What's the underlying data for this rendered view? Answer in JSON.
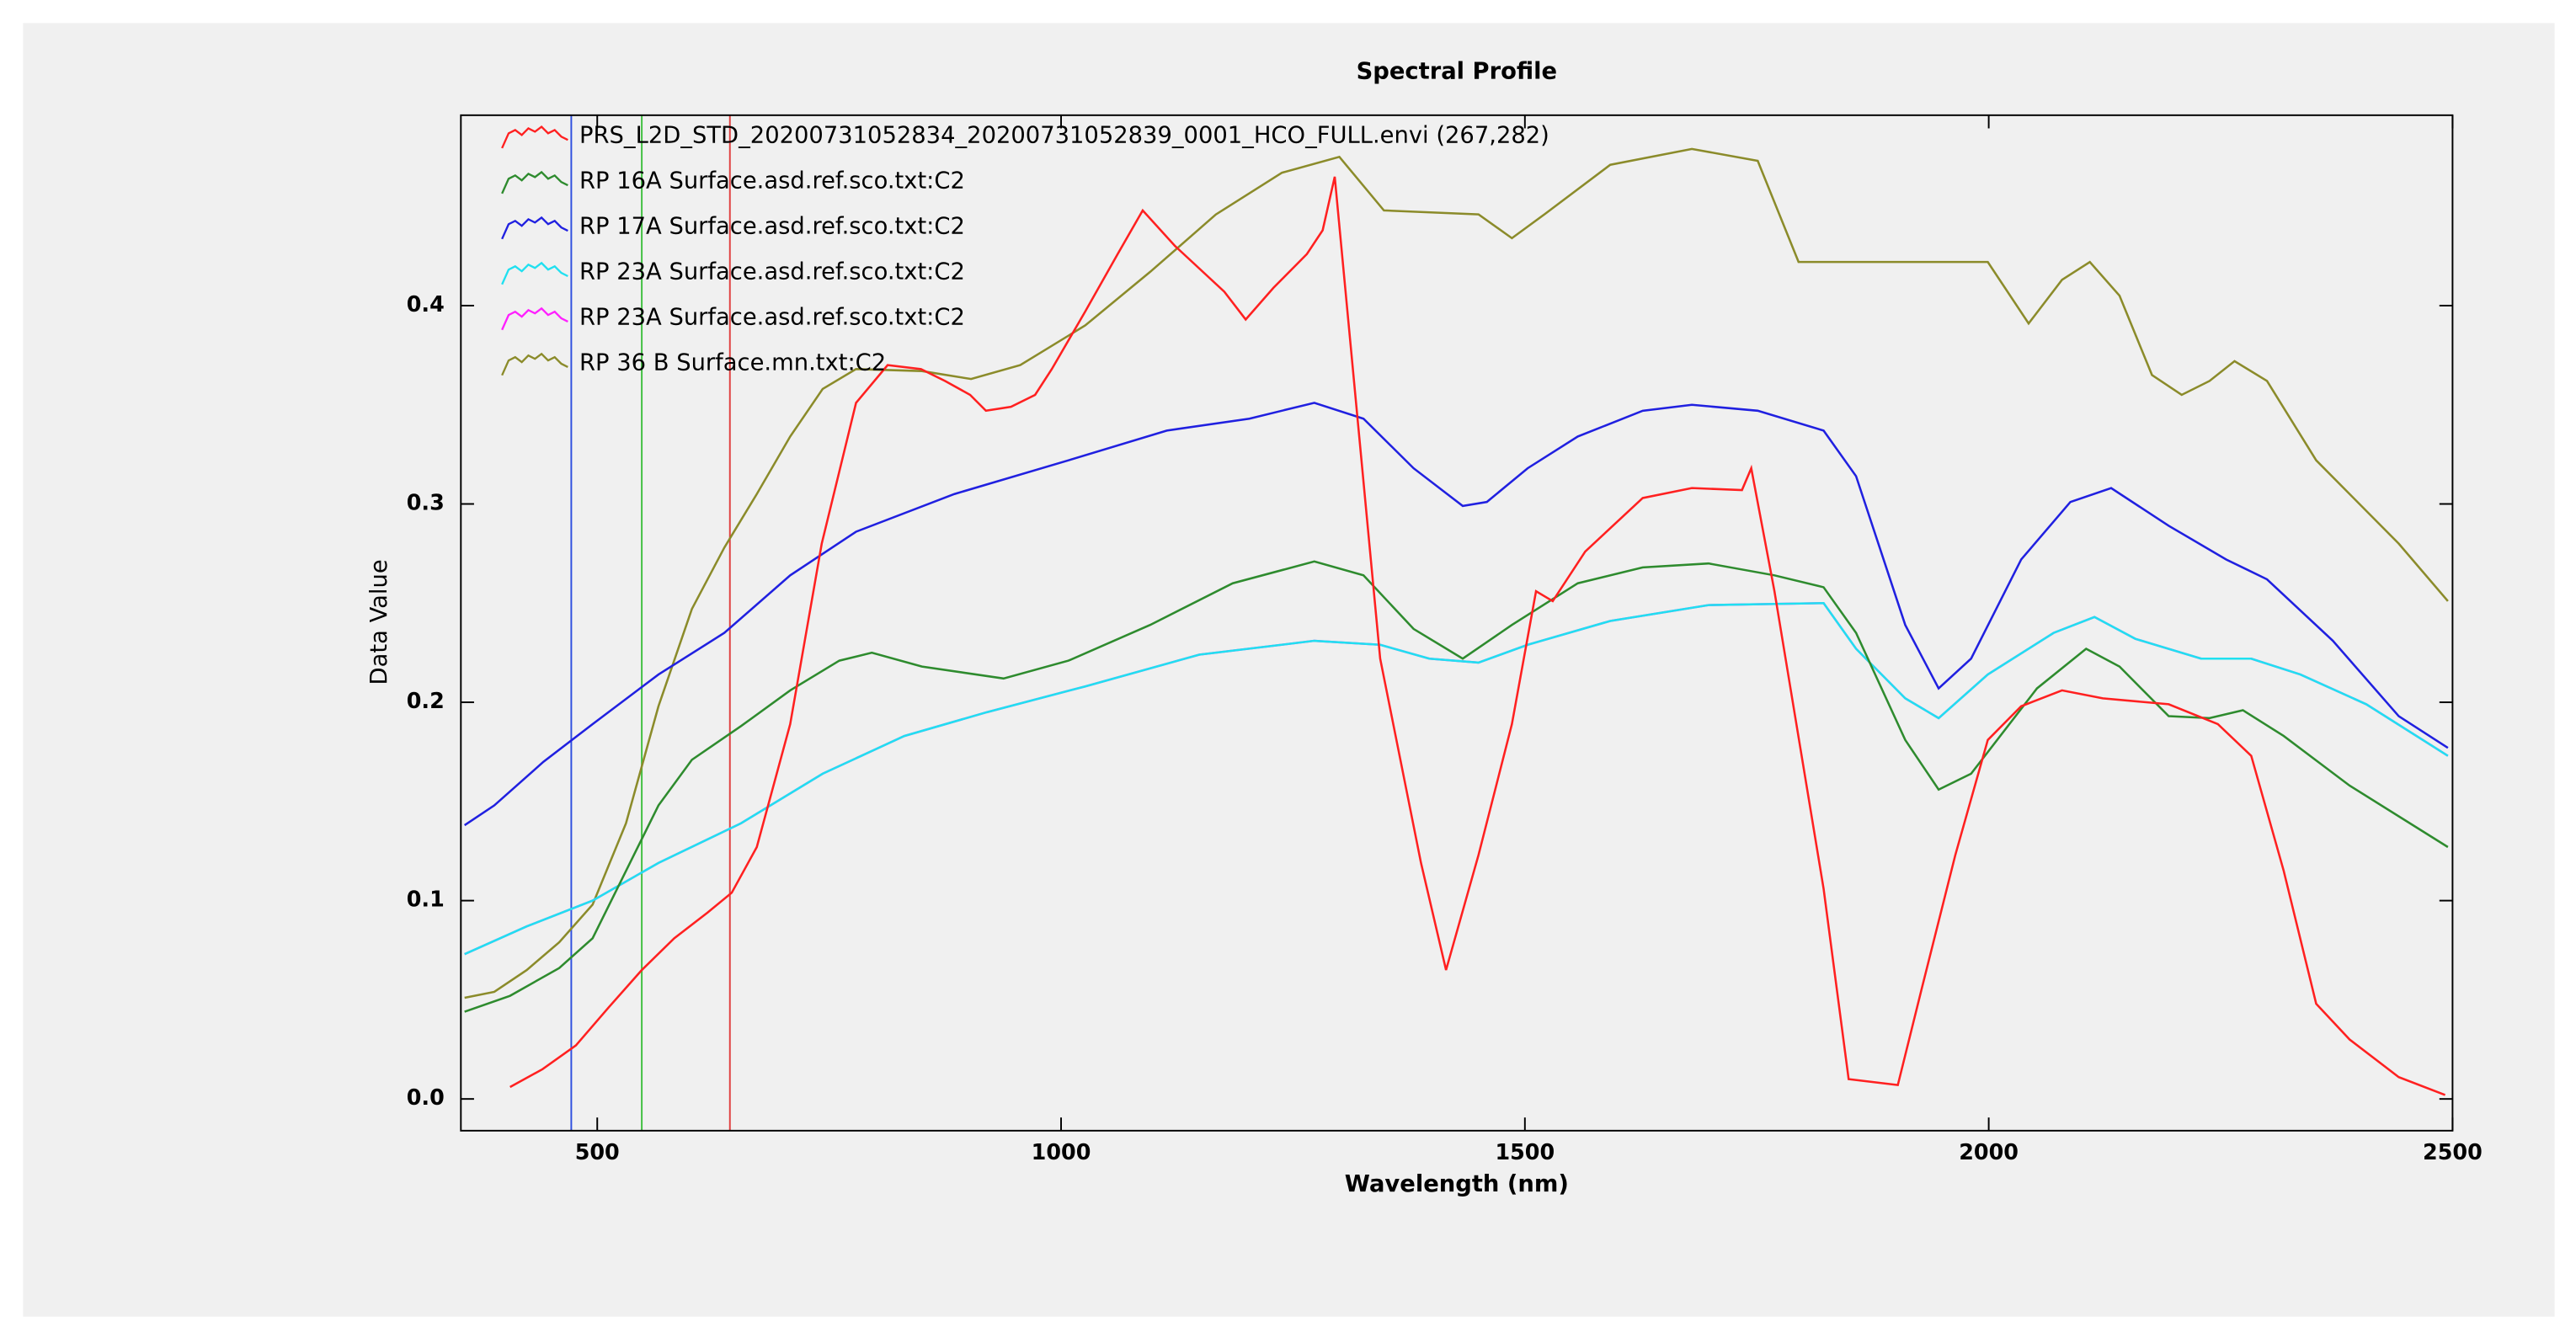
{
  "chart_data": {
    "type": "line",
    "title": "Spectral Profile",
    "x_label": "Wavelength (nm)",
    "y_label": "Data Value",
    "xlim": [
      353,
      2500
    ],
    "ylim": [
      -0.016,
      0.496
    ],
    "xticks": [
      500,
      1000,
      1500,
      2000,
      2500
    ],
    "yticks": [
      {
        "value": 0,
        "label": "0.0"
      },
      0.1,
      0.2,
      0.3,
      0.4
    ],
    "markers": [
      {
        "value": 472,
        "color": "#3050e0"
      },
      {
        "value": 548,
        "color": "#40c040"
      },
      {
        "value": 643,
        "color": "#e04040"
      }
    ],
    "series": [
      {
        "name": "PRS_L2D_STD_20200731052834_20200731052839_0001_HCO_FULL.envi (267,282)",
        "color": "#ff2020",
        "x": [
          406,
          441,
          477,
          512,
          548,
          583,
          619,
          645,
          672,
          708,
          742,
          779,
          813,
          849,
          875,
          902,
          919,
          946,
          972,
          990,
          1026,
          1061,
          1088,
          1123,
          1176,
          1199,
          1229,
          1265,
          1282,
          1295,
          1344,
          1388,
          1415,
          1450,
          1486,
          1512,
          1530,
          1565,
          1627,
          1680,
          1734,
          1744,
          1769,
          1822,
          1849,
          1902,
          1928,
          1964,
          1999,
          2035,
          2079,
          2123,
          2194,
          2247,
          2283,
          2318,
          2353,
          2389,
          2442,
          2492
        ],
        "values": [
          0.006,
          0.015,
          0.027,
          0.046,
          0.065,
          0.081,
          0.094,
          0.104,
          0.127,
          0.189,
          0.28,
          0.351,
          0.37,
          0.368,
          0.362,
          0.355,
          0.347,
          0.349,
          0.355,
          0.368,
          0.397,
          0.426,
          0.448,
          0.43,
          0.407,
          0.393,
          0.409,
          0.426,
          0.438,
          0.465,
          0.222,
          0.119,
          0.065,
          0.123,
          0.189,
          0.256,
          0.251,
          0.276,
          0.303,
          0.308,
          0.307,
          0.318,
          0.256,
          0.106,
          0.01,
          0.007,
          0.056,
          0.123,
          0.181,
          0.198,
          0.206,
          0.202,
          0.199,
          0.189,
          0.173,
          0.115,
          0.048,
          0.03,
          0.011,
          0.002
        ]
      },
      {
        "name": "RP 16A Surface.asd.ref.sco.txt:C2",
        "color": "#2e8b2e",
        "x": [
          357,
          406,
          459,
          495,
          531,
          566,
          602,
          655,
          708,
          761,
          796,
          850,
          938,
          1008,
          1096,
          1185,
          1273,
          1326,
          1380,
          1433,
          1486,
          1557,
          1627,
          1698,
          1769,
          1822,
          1857,
          1910,
          1946,
          1981,
          2052,
          2105,
          2141,
          2194,
          2238,
          2274,
          2318,
          2389,
          2495
        ],
        "values": [
          0.044,
          0.052,
          0.066,
          0.081,
          0.115,
          0.148,
          0.171,
          0.188,
          0.206,
          0.221,
          0.225,
          0.218,
          0.212,
          0.221,
          0.239,
          0.26,
          0.271,
          0.264,
          0.237,
          0.222,
          0.239,
          0.26,
          0.268,
          0.27,
          0.264,
          0.258,
          0.235,
          0.181,
          0.156,
          0.164,
          0.207,
          0.227,
          0.218,
          0.193,
          0.192,
          0.196,
          0.183,
          0.158,
          0.127
        ]
      },
      {
        "name": "RP 17A Surface.asd.ref.sco.txt:C2",
        "color": "#2020e0",
        "x": [
          357,
          389,
          442,
          495,
          566,
          637,
          708,
          779,
          885,
          1008,
          1114,
          1203,
          1273,
          1326,
          1380,
          1433,
          1459,
          1503,
          1557,
          1627,
          1680,
          1751,
          1822,
          1857,
          1910,
          1946,
          1981,
          2035,
          2088,
          2132,
          2194,
          2256,
          2300,
          2371,
          2442,
          2495
        ],
        "values": [
          0.138,
          0.148,
          0.17,
          0.189,
          0.214,
          0.235,
          0.264,
          0.286,
          0.305,
          0.322,
          0.337,
          0.343,
          0.351,
          0.343,
          0.318,
          0.299,
          0.301,
          0.318,
          0.334,
          0.347,
          0.35,
          0.347,
          0.337,
          0.314,
          0.239,
          0.207,
          0.222,
          0.272,
          0.301,
          0.308,
          0.289,
          0.272,
          0.262,
          0.231,
          0.193,
          0.177
        ]
      },
      {
        "name": "RP 23A Surface.asd.ref.sco.txt:C2",
        "color": "#20e0f0",
        "x": [
          357,
          424,
          495,
          566,
          655,
          743,
          831,
          920,
          1026,
          1149,
          1273,
          1344,
          1397,
          1450,
          1503,
          1592,
          1698,
          1822,
          1857,
          1910,
          1946,
          1999,
          2070,
          2114,
          2158,
          2229,
          2283,
          2336,
          2407,
          2495
        ],
        "values": [
          0.073,
          0.087,
          0.1,
          0.119,
          0.139,
          0.164,
          0.183,
          0.195,
          0.208,
          0.224,
          0.231,
          0.229,
          0.222,
          0.22,
          0.229,
          0.241,
          0.249,
          0.25,
          0.227,
          0.202,
          0.192,
          0.214,
          0.235,
          0.243,
          0.232,
          0.222,
          0.222,
          0.214,
          0.199,
          0.173
        ]
      },
      {
        "name": "RP 23A Surface.asd.ref.sco.txt:C2",
        "color": "#ff20ff",
        "x": [
          357,
          424,
          495,
          566,
          655,
          743,
          831,
          920,
          1026,
          1149,
          1273,
          1344,
          1397,
          1450,
          1503,
          1592,
          1698,
          1822,
          1857,
          1910,
          1946,
          1999,
          2070,
          2114,
          2158,
          2229,
          2283,
          2336,
          2407,
          2495
        ],
        "values": [
          0.073,
          0.087,
          0.1,
          0.119,
          0.139,
          0.164,
          0.183,
          0.195,
          0.208,
          0.224,
          0.231,
          0.229,
          0.222,
          0.22,
          0.229,
          0.241,
          0.249,
          0.25,
          0.227,
          0.202,
          0.192,
          0.214,
          0.235,
          0.243,
          0.232,
          0.222,
          0.222,
          0.214,
          0.199,
          0.173
        ]
      },
      {
        "name": "RP 36 B Surface.mn.txt:C2",
        "color": "#8b8b2a",
        "x": [
          357,
          389,
          424,
          459,
          495,
          531,
          566,
          602,
          637,
          672,
          708,
          743,
          779,
          850,
          903,
          956,
          1026,
          1096,
          1167,
          1238,
          1300,
          1348,
          1450,
          1486,
          1521,
          1592,
          1680,
          1751,
          1795,
          1999,
          2043,
          2079,
          2109,
          2141,
          2176,
          2208,
          2238,
          2265,
          2300,
          2353,
          2442,
          2495
        ],
        "values": [
          0.051,
          0.054,
          0.065,
          0.079,
          0.098,
          0.139,
          0.198,
          0.247,
          0.278,
          0.305,
          0.334,
          0.358,
          0.368,
          0.367,
          0.363,
          0.37,
          0.39,
          0.417,
          0.446,
          0.467,
          0.475,
          0.448,
          0.446,
          0.434,
          0.446,
          0.471,
          0.479,
          0.473,
          0.422,
          0.422,
          0.391,
          0.413,
          0.422,
          0.405,
          0.365,
          0.355,
          0.362,
          0.372,
          0.362,
          0.322,
          0.28,
          0.251
        ]
      }
    ]
  }
}
